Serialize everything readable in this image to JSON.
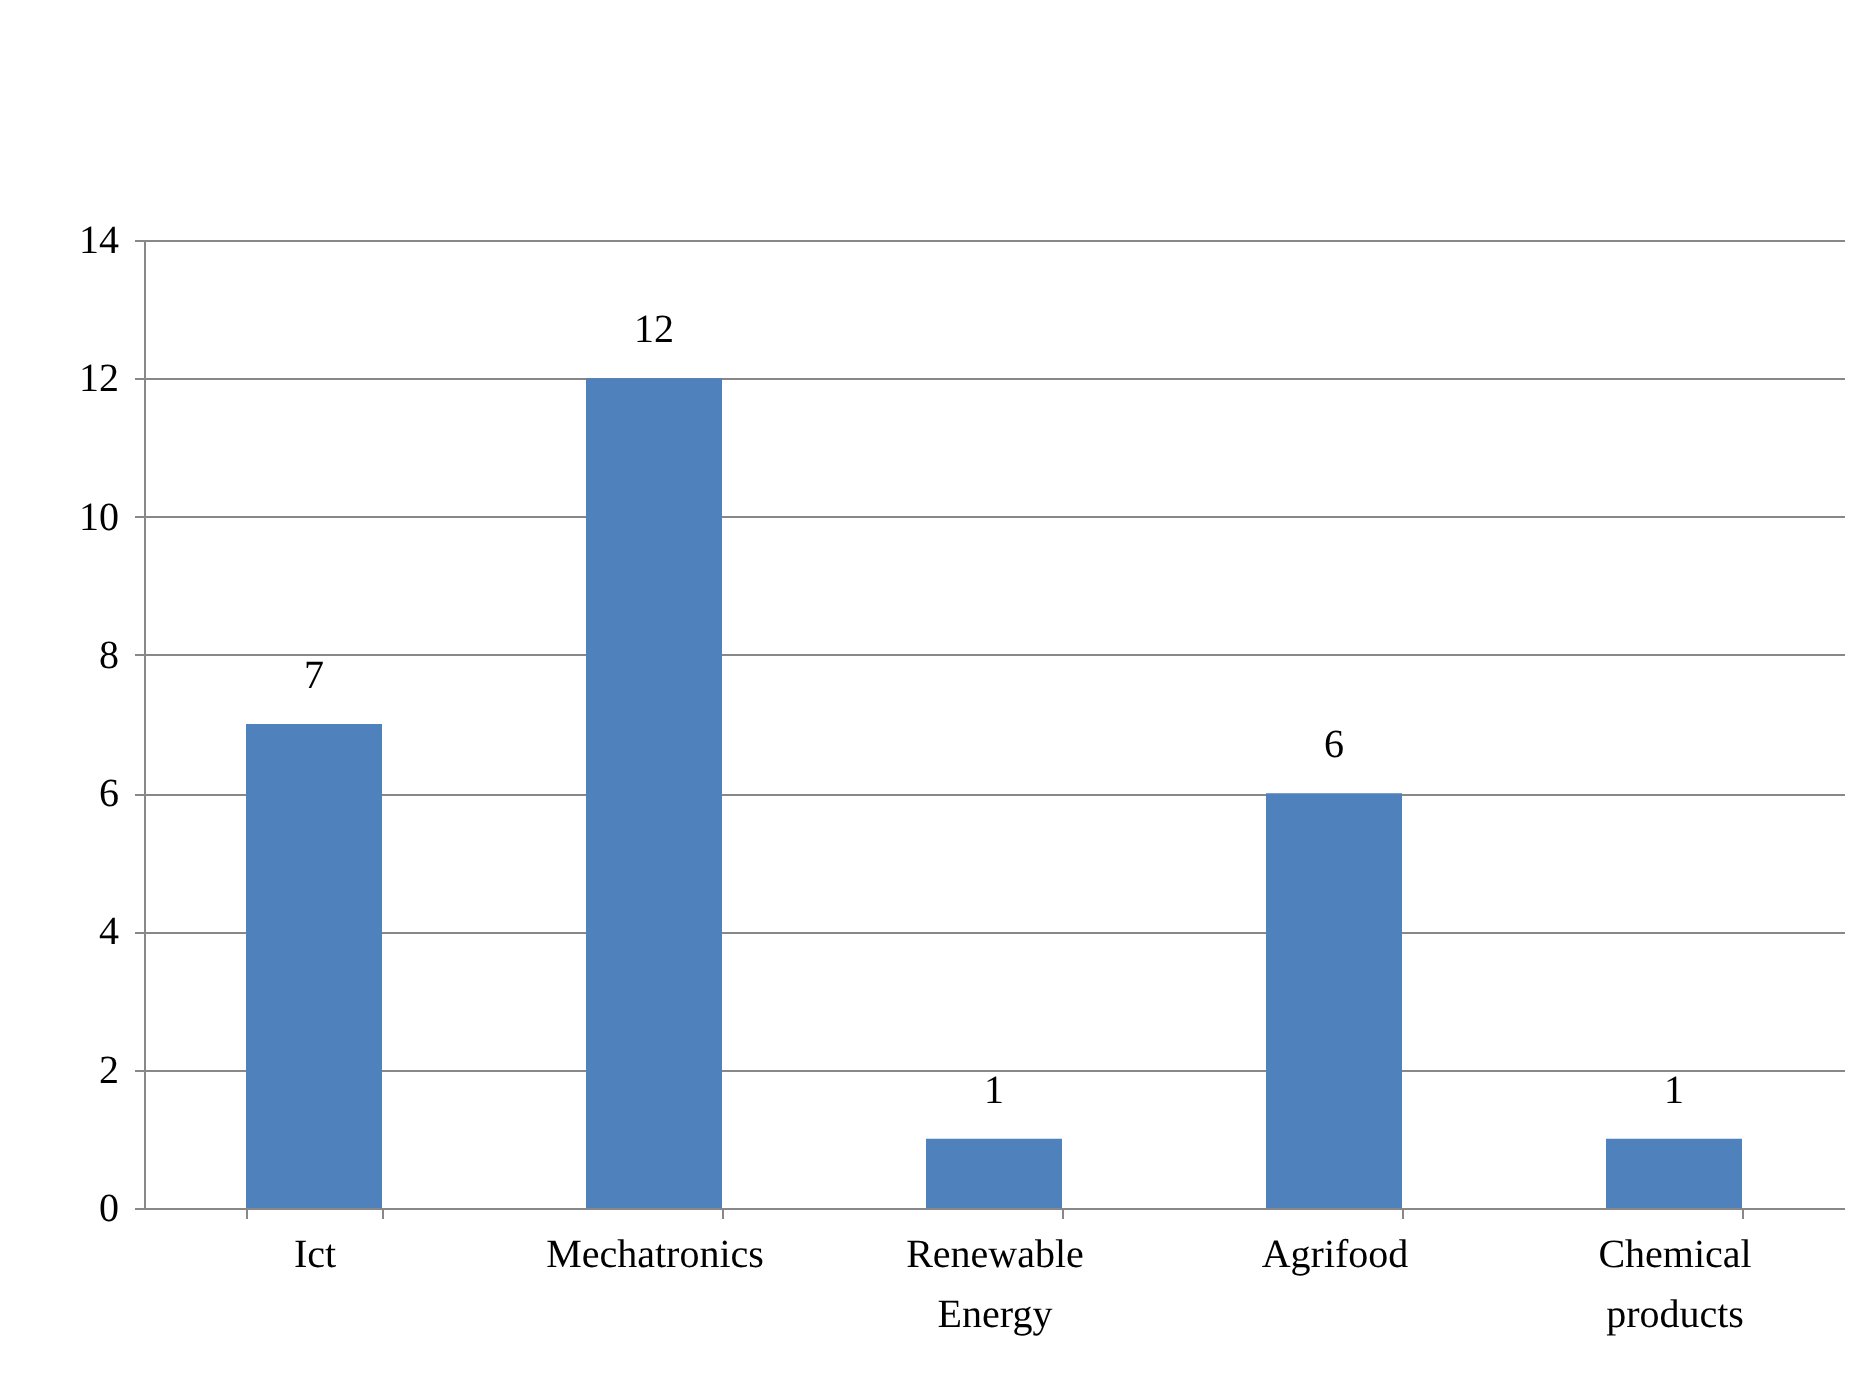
{
  "chart_data": {
    "type": "bar",
    "categories": [
      "Ict",
      "Mechatronics",
      "Renewable Energy",
      "Agrifood",
      "Chemical products"
    ],
    "values": [
      7,
      12,
      1,
      6,
      1
    ],
    "color": "#4f81bd",
    "ylim": [
      0,
      14
    ],
    "yticks": [
      0,
      2,
      4,
      6,
      8,
      10,
      12,
      14
    ],
    "grid": "y",
    "data_labels": true
  }
}
